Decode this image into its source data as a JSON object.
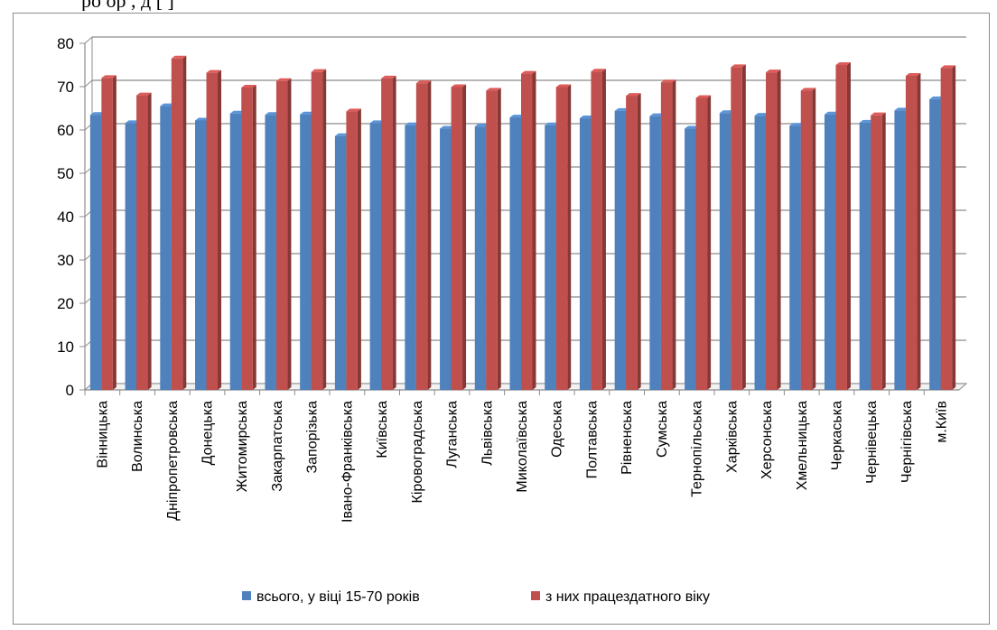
{
  "top_text": "ро                ор                                              ,             д                         [ ]",
  "chart_data": {
    "type": "bar",
    "title": "",
    "xlabel": "",
    "ylabel": "",
    "ylim": [
      0,
      80
    ],
    "yticks": [
      0,
      10,
      20,
      30,
      40,
      50,
      60,
      70,
      80
    ],
    "grid": true,
    "legend_position": "bottom",
    "categories": [
      "Вінницька",
      "Волинська",
      "Дніпропетровська",
      "Донецька",
      "Житомирська",
      "Закарпатська",
      "Запорізька",
      "Івано-Франківська",
      "Київська",
      "Кіровоградська",
      "Луганська",
      "Львівська",
      "Миколаївська",
      "Одеська",
      "Полтавська",
      "Рівненська",
      "Сумська",
      "Тернопільська",
      "Харківська",
      "Херсонська",
      "Хмельницька",
      "Черкаська",
      "Чернівецька",
      "Чернігівська",
      "м.Київ"
    ],
    "series": [
      {
        "name": "всього, у віці 15-70 років",
        "color": "#4f81bd",
        "values": [
          63.5,
          61.6,
          65.5,
          62.2,
          63.8,
          63.5,
          63.6,
          58.6,
          61.6,
          61.1,
          60.3,
          60.8,
          62.9,
          61.1,
          62.7,
          64.4,
          63.2,
          60.3,
          63.9,
          63.3,
          61.0,
          63.6,
          61.7,
          64.5,
          67.1
        ]
      },
      {
        "name": "з них працездатного віку",
        "color": "#c0504d",
        "values": [
          72.0,
          68.0,
          76.5,
          73.2,
          69.8,
          71.3,
          73.4,
          64.3,
          71.9,
          70.8,
          69.9,
          69.1,
          73.0,
          69.9,
          73.5,
          67.9,
          71.0,
          67.4,
          74.5,
          73.3,
          69.1,
          75.0,
          63.4,
          72.5,
          74.3
        ]
      }
    ]
  }
}
